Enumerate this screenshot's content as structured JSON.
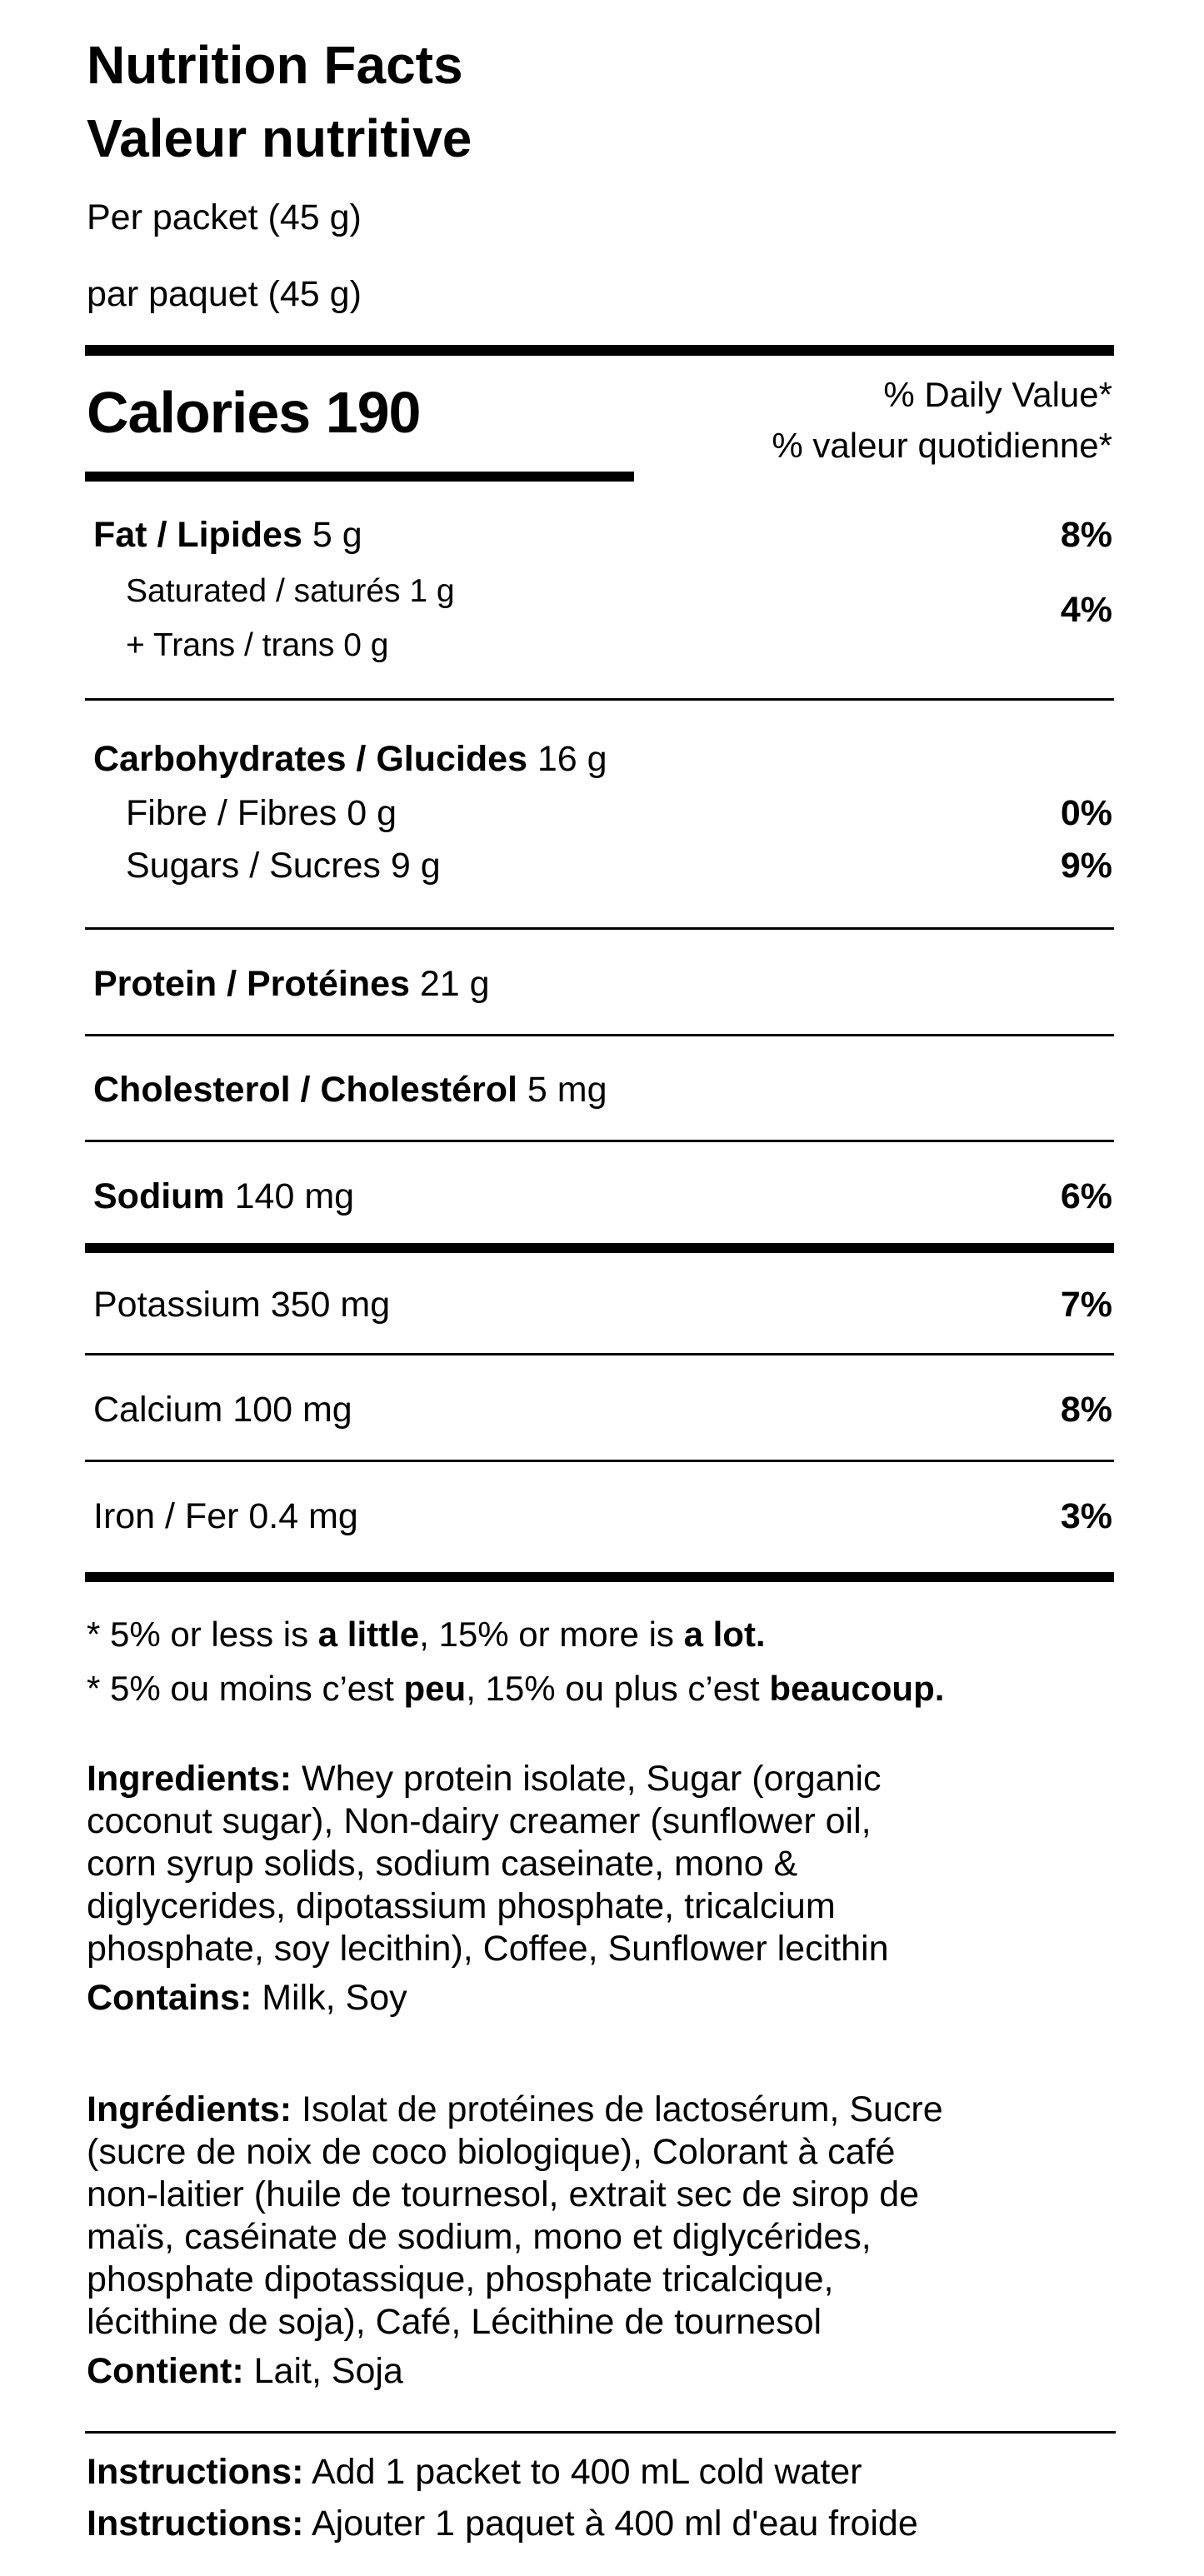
{
  "header": {
    "title_en": "Nutrition Facts",
    "title_fr": "Valeur nutritive",
    "serving_en": "Per packet (45 g)",
    "serving_fr": "par paquet (45 g)"
  },
  "calories": {
    "label": "Calories 190",
    "dv_en": "% Daily Value*",
    "dv_fr": "% valeur quotidienne*"
  },
  "nutrients": {
    "fat": {
      "label": "Fat / Lipides",
      "amount": "5 g",
      "dv": "8%"
    },
    "saturated": {
      "label": "Saturated / saturés 1 g"
    },
    "trans": {
      "label": "+ Trans / trans 0 g"
    },
    "sat_trans_dv": "4%",
    "carbs": {
      "label": "Carbohydrates / Glucides",
      "amount": "16 g"
    },
    "fibre": {
      "label": "Fibre / Fibres 0 g",
      "dv": "0%"
    },
    "sugars": {
      "label": "Sugars / Sucres 9 g",
      "dv": "9%"
    },
    "protein": {
      "label": "Protein / Protéines",
      "amount": "21 g"
    },
    "cholesterol": {
      "label": "Cholesterol / Cholestérol",
      "amount": "5 mg"
    },
    "sodium": {
      "label": "Sodium",
      "amount": "140 mg",
      "dv": "6%"
    },
    "potassium": {
      "label": "Potassium 350 mg",
      "dv": "7%"
    },
    "calcium": {
      "label": "Calcium 100 mg",
      "dv": "8%"
    },
    "iron": {
      "label": "Iron / Fer 0.4 mg",
      "dv": "3%"
    }
  },
  "footnotes": {
    "en": {
      "a": "* 5% or less is ",
      "b": "a little",
      "c": ", 15% or more is ",
      "d": "a lot."
    },
    "fr": {
      "a": "* 5% ou moins c’est ",
      "b": "peu",
      "c": ", 15% ou plus c’est ",
      "d": "beaucoup."
    }
  },
  "ingredients_en": {
    "label": "Ingredients:",
    "lines": [
      " Whey protein isolate, Sugar (organic",
      "coconut sugar), Non-dairy creamer (sunflower oil,",
      "corn syrup solids, sodium caseinate, mono &",
      "diglycerides, dipotassium phosphate, tricalcium",
      "phosphate, soy lecithin), Coffee, Sunflower lecithin"
    ],
    "contains_label": "Contains:",
    "contains": " Milk, Soy"
  },
  "ingredients_fr": {
    "label": "Ingrédients:",
    "lines": [
      " Isolat de protéines de lactosérum, Sucre",
      "(sucre de noix de coco biologique), Colorant à café",
      "non-laitier (huile de tournesol, extrait sec de sirop de",
      "maïs, caséinate de sodium, mono et diglycérides,",
      "phosphate dipotassique, phosphate tricalcique,",
      "lécithine de soja), Café, Lécithine de tournesol"
    ],
    "contains_label": "Contient:",
    "contains": " Lait, Soja"
  },
  "instructions": {
    "en_label": "Instructions:",
    "en": " Add 1 packet to 400 mL cold water",
    "fr_label": "Instructions:",
    "fr": " Ajouter 1 paquet à 400 ml d'eau froide"
  }
}
